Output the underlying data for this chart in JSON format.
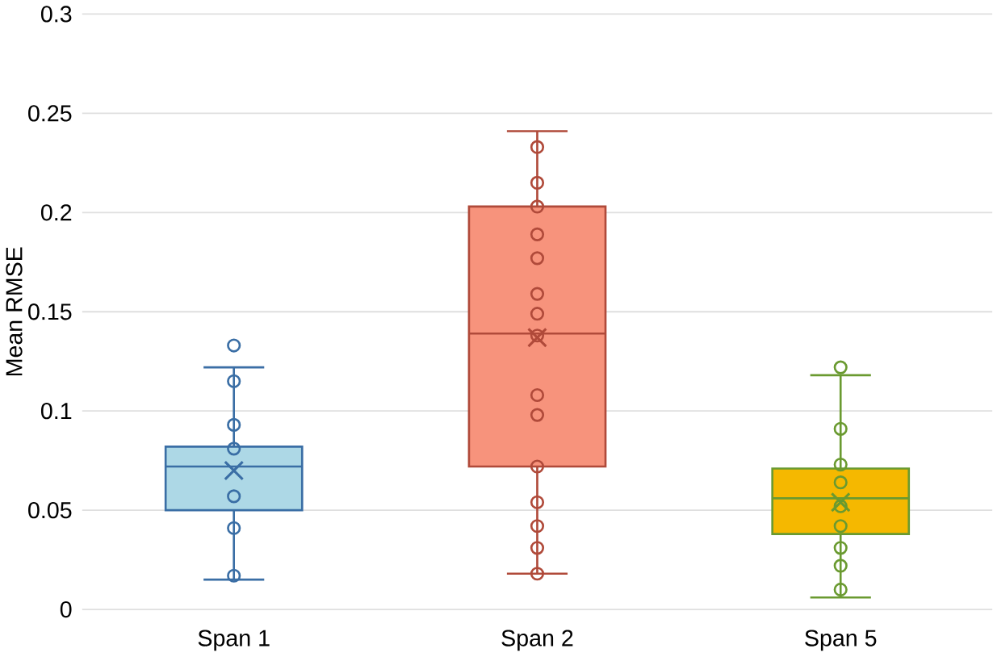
{
  "chart_data": {
    "type": "box",
    "ylabel": "Mean RMSE",
    "categories": [
      "Span 1",
      "Span 2",
      "Span 5"
    ],
    "colors": [
      "#add8e6",
      "#f7937c",
      "#f5b800"
    ],
    "boxes": [
      {
        "low": 0.015,
        "q1": 0.05,
        "median": 0.072,
        "q3": 0.082,
        "high": 0.122,
        "mean": 0.07,
        "outliers": [
          0.133
        ]
      },
      {
        "low": 0.018,
        "q1": 0.072,
        "median": 0.139,
        "q3": 0.203,
        "high": 0.241,
        "mean": 0.137
      },
      {
        "low": 0.006,
        "q1": 0.038,
        "median": 0.056,
        "q3": 0.071,
        "high": 0.118,
        "mean": 0.054,
        "outliers": [
          0.122
        ]
      }
    ],
    "series": [
      {
        "type": "scatter",
        "color": "#3a6ea5",
        "x": [
          "Span 1",
          "Span 1",
          "Span 1",
          "Span 1",
          "Span 1",
          "Span 1",
          "Span 1"
        ],
        "values": [
          0.115,
          0.093,
          0.081,
          null,
          0.057,
          0.041,
          0.017
        ]
      },
      {
        "type": "scatter",
        "color": "#b04a3a",
        "x": [
          "Span 2",
          "Span 2",
          "Span 2",
          "Span 2",
          "Span 2",
          "Span 2",
          "Span 2",
          "Span 2",
          "Span 2",
          "Span 2",
          "Span 2",
          "Span 2",
          "Span 2",
          "Span 2",
          "Span 2"
        ],
        "values": [
          0.233,
          0.215,
          0.203,
          0.189,
          0.177,
          0.159,
          0.149,
          0.138,
          0.108,
          0.098,
          0.072,
          0.054,
          0.042,
          0.031,
          0.018
        ]
      },
      {
        "type": "scatter",
        "color": "#6a9a30",
        "x": [
          "Span 5",
          "Span 5",
          "Span 5",
          "Span 5",
          "Span 5",
          "Span 5",
          "Span 5",
          "Span 5"
        ],
        "values": [
          0.091,
          0.073,
          0.064,
          0.052,
          0.042,
          0.031,
          0.022,
          0.01
        ]
      }
    ],
    "ylim": [
      0,
      0.3
    ],
    "yticks": [
      0,
      0.05,
      0.1,
      0.15,
      0.2,
      0.25,
      0.3
    ],
    "grid": "y",
    "marker": "circle"
  }
}
